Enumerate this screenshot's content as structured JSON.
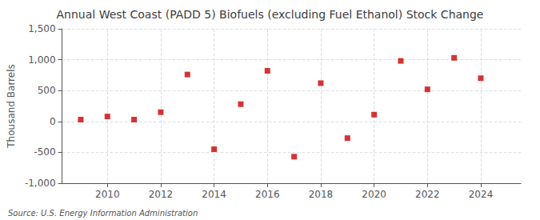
{
  "chart_data": {
    "type": "scatter",
    "title": "Annual West Coast (PADD 5) Biofuels (excluding Fuel Ethanol) Stock Change",
    "ylabel": "Thousand Barrels",
    "annotations": [
      "Source: U.S. Energy Information Administration"
    ],
    "x": [
      2009,
      2010,
      2011,
      2012,
      2013,
      2014,
      2015,
      2016,
      2017,
      2018,
      2019,
      2020,
      2021,
      2022,
      2023,
      2024
    ],
    "values": [
      30,
      80,
      30,
      150,
      760,
      -450,
      280,
      820,
      -570,
      620,
      -270,
      110,
      980,
      520,
      1030,
      700
    ],
    "color": "#CC0000",
    "marker": "square",
    "xlim": [
      2008.3,
      2025.5
    ],
    "xticks": [
      2010,
      2012,
      2014,
      2016,
      2018,
      2020,
      2022,
      2024
    ],
    "ylim": [
      -1000,
      1500
    ],
    "yticks": [
      {
        "value": -1000,
        "label": "-1,000"
      },
      -500,
      0,
      500,
      {
        "value": 1000,
        "label": "1,000"
      },
      {
        "value": 1500,
        "label": "1,500"
      }
    ],
    "grid": true
  }
}
